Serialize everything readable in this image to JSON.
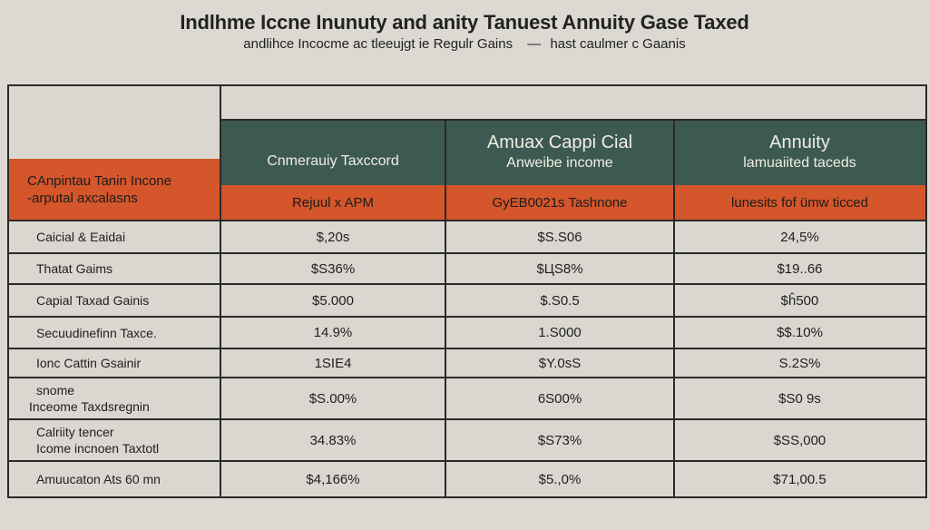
{
  "title": "Indlhme Iccne Inunuty and anity Tanuest Annuity Gase Taxed",
  "subtitle": {
    "left": "andlihce  Incocme ac tleeujgt ie Regulr Gains",
    "right": "hast caulmer c Gaanis"
  },
  "columns": [
    {
      "header_top": "",
      "header_sub": "Cnmerauiy  Taxccord",
      "orange_label": "Rejuul x APM"
    },
    {
      "header_top": "Amuax Cappi Cial",
      "header_sub": "Anweibe income",
      "orange_label": "GyEB0021s Tashnone"
    },
    {
      "header_top": "Annuity",
      "header_sub": "lamuaiited taceds",
      "orange_label": "lunesits fof ümw ticced"
    }
  ],
  "row_header": {
    "line1": "CAnpintau Tanin Incone",
    "line2": "-arputal axcalasns"
  },
  "rows": [
    {
      "label": [
        "Caicial & Eaidai"
      ],
      "values": [
        "$,20s",
        "$S.S06",
        "24,5%"
      ]
    },
    {
      "label": [
        "Thatat Gaims"
      ],
      "values": [
        "$S36%",
        "$ЦS8%",
        "$19..66"
      ]
    },
    {
      "label": [
        "Capial Taxad Gainis"
      ],
      "values": [
        "$5.000",
        "$.S0.5",
        "$ĥ500"
      ]
    },
    {
      "label": [
        "Secuudinefinn Taxce."
      ],
      "values": [
        "14.9%",
        "1.S000",
        "$$.10%"
      ]
    },
    {
      "label": [
        "Ionc Cattin Gsainir"
      ],
      "values": [
        "1SIE4",
        "$Y.0sS",
        "S.2S%"
      ]
    },
    {
      "label": [
        "snome",
        "Inceome Taxdsregnin"
      ],
      "values": [
        "$S.00%",
        "6S00%",
        "$S0 9s"
      ]
    },
    {
      "label": [
        "Calriity tencer",
        "Icome incnoen Taxtotl"
      ],
      "values": [
        "34.83%",
        "$S73%",
        "$SS,000"
      ]
    },
    {
      "label": [
        "Amuucaton Ats 60 mn"
      ],
      "values": [
        "$4,166%",
        "$5.,0%",
        "$71,00.5"
      ]
    }
  ],
  "colors": {
    "background": "#dcd9d3",
    "header_green": "#3d5a52",
    "header_orange": "#d4562a",
    "border": "#2a2a2a"
  }
}
